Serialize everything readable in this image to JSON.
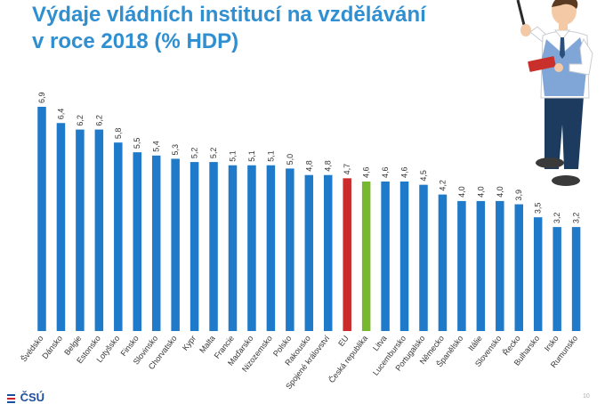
{
  "slide": {
    "title_line1": "Výdaje vládních institucí na vzdělávání",
    "title_line2": "v roce 2018 (% HDP)",
    "logo_text": "ČSÚ",
    "page_number": "10"
  },
  "colors": {
    "title": "#2f8fd0",
    "bar_default": "#1f7ac9",
    "bar_eu": "#cc2b2b",
    "bar_cz": "#77b82e",
    "logo": "#1f4e9c"
  },
  "chart_data": {
    "type": "bar",
    "categories": [
      "Švédsko",
      "Dánsko",
      "Belgie",
      "Estonsko",
      "Lotyšsko",
      "Finsko",
      "Slovinsko",
      "Chorvatsko",
      "Kypr",
      "Malta",
      "Francie",
      "Maďarsko",
      "Nizozemsko",
      "Polsko",
      "Rakousko",
      "Spojené království",
      "EU",
      "Česká republika",
      "Litva",
      "Lucembursko",
      "Portugalsko",
      "Německo",
      "Španělsko",
      "Itálie",
      "Slovensko",
      "Řecko",
      "Bulharsko",
      "Irsko",
      "Rumunsko"
    ],
    "values": [
      6.9,
      6.4,
      6.2,
      6.2,
      5.8,
      5.5,
      5.4,
      5.3,
      5.2,
      5.2,
      5.1,
      5.1,
      5.1,
      5.0,
      4.8,
      4.8,
      4.7,
      4.6,
      4.6,
      4.6,
      4.5,
      4.2,
      4.0,
      4.0,
      4.0,
      3.9,
      3.5,
      3.2,
      3.2
    ],
    "value_labels": [
      "6,9",
      "6,4",
      "6,2",
      "6,2",
      "5,8",
      "5,5",
      "5,4",
      "5,3",
      "5,2",
      "5,2",
      "5,1",
      "5,1",
      "5,1",
      "5,0",
      "4,8",
      "4,8",
      "4,7",
      "4,6",
      "4,6",
      "4,6",
      "4,5",
      "4,2",
      "4,0",
      "4,0",
      "4,0",
      "3,9",
      "3,5",
      "3,2",
      "3,2"
    ],
    "highlight": {
      "EU": "#cc2b2b",
      "Česká republika": "#77b82e"
    },
    "ylim": [
      0,
      7.0
    ],
    "grid": false,
    "legend": "none"
  }
}
